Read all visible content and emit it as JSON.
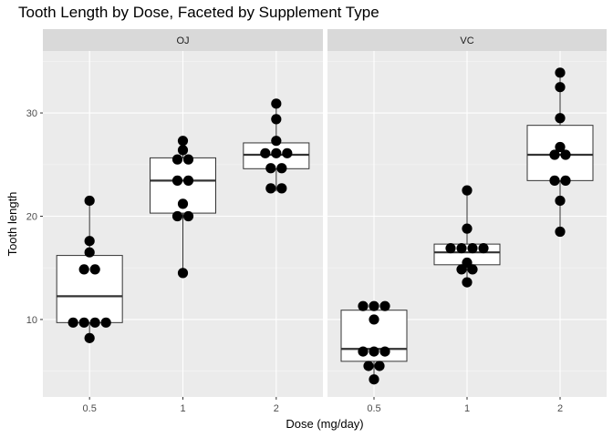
{
  "chart_data": {
    "type": "boxplot",
    "title": "Tooth Length by Dose, Faceted by Supplement Type",
    "xlabel": "Dose (mg/day)",
    "ylabel": "Tooth length",
    "categories": [
      "0.5",
      "1",
      "2"
    ],
    "y_ticks": [
      10,
      20,
      30
    ],
    "ylim": [
      2.5,
      36
    ],
    "grid": true,
    "facets": [
      {
        "name": "OJ",
        "groups": [
          {
            "dose": "0.5",
            "box": {
              "q1": 9.7,
              "median": 12.25,
              "q3": 16.2,
              "whisker_low": 8.2,
              "whisker_high": 21.5
            },
            "points": [
              8.2,
              9.4,
              9.7,
              9.7,
              10.0,
              14.5,
              15.2,
              16.5,
              17.6,
              21.5
            ]
          },
          {
            "dose": "1",
            "box": {
              "q1": 20.3,
              "median": 23.45,
              "q3": 25.65,
              "whisker_low": 14.5,
              "whisker_high": 27.3
            },
            "points": [
              14.5,
              19.7,
              20.3,
              21.2,
              23.3,
              23.6,
              25.2,
              25.8,
              26.4,
              27.3
            ]
          },
          {
            "dose": "2",
            "box": {
              "q1": 24.6,
              "median": 25.95,
              "q3": 27.1,
              "whisker_low": 22.4,
              "whisker_high": 30.9
            },
            "points": [
              22.4,
              23.0,
              24.5,
              24.8,
              25.5,
              26.4,
              26.4,
              27.3,
              29.4,
              30.9
            ]
          }
        ]
      },
      {
        "name": "VC",
        "groups": [
          {
            "dose": "0.5",
            "box": {
              "q1": 5.95,
              "median": 7.15,
              "q3": 10.9,
              "whisker_low": 4.2,
              "whisker_high": 11.5
            },
            "points": [
              4.2,
              5.2,
              5.8,
              6.4,
              7.0,
              7.3,
              10.0,
              11.2,
              11.2,
              11.5
            ]
          },
          {
            "dose": "1",
            "box": {
              "q1": 15.3,
              "median": 16.5,
              "q3": 17.3,
              "whisker_low": 13.6,
              "whisker_high": 22.5
            },
            "points": [
              13.6,
              14.5,
              15.2,
              15.5,
              16.5,
              16.5,
              17.3,
              17.3,
              18.8,
              22.5
            ]
          },
          {
            "dose": "2",
            "box": {
              "q1": 23.45,
              "median": 25.95,
              "q3": 28.8,
              "whisker_low": 18.5,
              "whisker_high": 33.9
            },
            "points": [
              18.5,
              21.5,
              23.3,
              23.6,
              25.5,
              26.4,
              26.7,
              29.5,
              32.5,
              33.9
            ]
          }
        ]
      }
    ]
  }
}
